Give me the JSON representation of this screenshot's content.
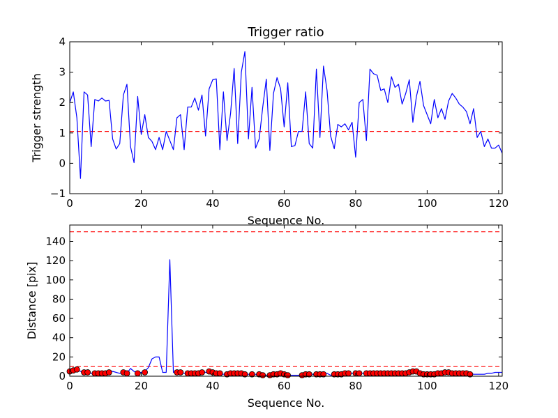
{
  "chart_data": [
    {
      "type": "line",
      "title": "Trigger ratio",
      "xlabel": "Sequence No.",
      "ylabel": "Trigger strength",
      "xlim": [
        0,
        121
      ],
      "ylim": [
        -1,
        4
      ],
      "xticks": [
        0,
        20,
        40,
        60,
        80,
        100,
        120
      ],
      "yticks": [
        -1,
        0,
        1,
        2,
        3,
        4
      ],
      "colors": {
        "line": "#0000ff",
        "threshold": "#ff0000"
      },
      "threshold_lines": [
        1.05
      ],
      "series": [
        {
          "x": [
            0,
            1,
            2,
            3,
            4,
            5,
            6,
            7,
            8,
            9,
            10,
            11,
            12,
            13,
            14,
            15,
            16,
            17,
            18,
            19,
            20,
            21,
            22,
            23,
            24,
            25,
            26,
            27,
            28,
            29,
            30,
            31,
            32,
            33,
            34,
            35,
            36,
            37,
            38,
            39,
            40,
            41,
            42,
            43,
            44,
            45,
            46,
            47,
            48,
            49,
            50,
            51,
            52,
            53,
            54,
            55,
            56,
            57,
            58,
            59,
            60,
            61,
            62,
            63,
            64,
            65,
            66,
            67,
            68,
            69,
            70,
            71,
            72,
            73,
            74,
            75,
            76,
            77,
            78,
            79,
            80,
            81,
            82,
            83,
            84,
            85,
            86,
            87,
            88,
            89,
            90,
            91,
            92,
            93,
            94,
            95,
            96,
            97,
            98,
            99,
            100,
            101,
            102,
            103,
            104,
            105,
            106,
            107,
            108,
            109,
            110,
            111,
            112,
            113,
            114,
            115,
            116,
            117,
            118,
            119,
            120,
            121
          ],
          "y": [
            2.0,
            2.35,
            1.5,
            -0.5,
            2.35,
            2.25,
            0.55,
            2.1,
            2.05,
            2.15,
            2.05,
            2.07,
            0.8,
            0.47,
            0.65,
            2.25,
            2.6,
            0.55,
            0.02,
            2.2,
            0.95,
            1.6,
            0.85,
            0.72,
            0.45,
            0.85,
            0.45,
            1.05,
            0.75,
            0.45,
            1.5,
            1.6,
            0.45,
            1.85,
            1.85,
            2.15,
            1.75,
            2.25,
            0.9,
            2.45,
            2.75,
            2.78,
            0.45,
            2.35,
            0.75,
            1.65,
            3.12,
            0.65,
            3.0,
            3.68,
            0.8,
            2.5,
            0.5,
            0.8,
            1.85,
            2.77,
            0.42,
            2.3,
            2.82,
            2.45,
            1.2,
            2.65,
            0.55,
            0.58,
            1.05,
            1.05,
            2.35,
            0.65,
            0.5,
            3.1,
            0.85,
            3.2,
            2.4,
            0.9,
            0.48,
            1.28,
            1.2,
            1.3,
            1.1,
            1.35,
            0.2,
            2.0,
            2.1,
            0.75,
            3.1,
            2.95,
            2.9,
            2.4,
            2.45,
            2.0,
            2.85,
            2.5,
            2.6,
            1.95,
            2.3,
            2.75,
            1.35,
            2.2,
            2.7,
            1.9,
            1.6,
            1.3,
            2.1,
            1.5,
            1.8,
            1.45,
            2.05,
            2.3,
            2.15,
            1.95,
            1.85,
            1.7,
            1.3,
            1.8,
            0.85,
            1.05,
            0.55,
            0.8,
            0.5,
            0.5,
            0.6,
            0.33
          ]
        }
      ]
    },
    {
      "type": "line",
      "title": "",
      "xlabel": "Sequence No.",
      "ylabel": "Distance [pix]",
      "xlim": [
        0,
        121
      ],
      "ylim": [
        0,
        157
      ],
      "xticks": [
        0,
        20,
        40,
        60,
        80,
        100,
        120
      ],
      "yticks": [
        0,
        20,
        40,
        60,
        80,
        100,
        120,
        140
      ],
      "colors": {
        "line": "#0000ff",
        "marker": "#ff0000",
        "threshold": "#ff0000"
      },
      "threshold_lines": [
        150,
        10
      ],
      "series": [
        {
          "x": [
            0,
            1,
            2,
            3,
            4,
            5,
            6,
            7,
            8,
            9,
            10,
            11,
            12,
            13,
            14,
            15,
            16,
            17,
            18,
            19,
            20,
            21,
            22,
            23,
            24,
            25,
            26,
            27,
            28,
            29,
            30,
            31,
            32,
            33,
            34,
            35,
            36,
            37,
            38,
            39,
            40,
            41,
            42,
            43,
            44,
            45,
            46,
            47,
            48,
            49,
            50,
            51,
            52,
            53,
            54,
            55,
            56,
            57,
            58,
            59,
            60,
            61,
            62,
            63,
            64,
            65,
            66,
            67,
            68,
            69,
            70,
            71,
            72,
            73,
            74,
            75,
            76,
            77,
            78,
            79,
            80,
            81,
            82,
            83,
            84,
            85,
            86,
            87,
            88,
            89,
            90,
            91,
            92,
            93,
            94,
            95,
            96,
            97,
            98,
            99,
            100,
            101,
            102,
            103,
            104,
            105,
            106,
            107,
            108,
            109,
            110,
            111,
            112,
            113,
            114,
            115,
            116,
            117,
            118,
            119,
            120,
            121
          ],
          "y": [
            5,
            6,
            7,
            5,
            4,
            4,
            3,
            3,
            3,
            3,
            4,
            4,
            5,
            4,
            3,
            3,
            3,
            8,
            5,
            3,
            4,
            5,
            9,
            18,
            20,
            20,
            4,
            4,
            121,
            4,
            4,
            4,
            3,
            3,
            3,
            4,
            5,
            5,
            4,
            4,
            3,
            3,
            2,
            2,
            3,
            3,
            3,
            3,
            2,
            2,
            2,
            2,
            2,
            1,
            1,
            1,
            2,
            2,
            3,
            2,
            1,
            1,
            1,
            1,
            1,
            1,
            2,
            2,
            2,
            2,
            2,
            2,
            3,
            1,
            2,
            2,
            2,
            2,
            3,
            3,
            3,
            3,
            3,
            3,
            3,
            3,
            3,
            3,
            3,
            3,
            3,
            3,
            3,
            3,
            3,
            4,
            5,
            5,
            3,
            2,
            2,
            2,
            2,
            2,
            3,
            3,
            4,
            4,
            3,
            3,
            3,
            3,
            3,
            2,
            2,
            2,
            2,
            3,
            3,
            4,
            4,
            4
          ],
          "markers_x": [
            0,
            1,
            2,
            4,
            5,
            7,
            8,
            9,
            10,
            11,
            15,
            16,
            19,
            21,
            30,
            31,
            33,
            34,
            35,
            36,
            37,
            39,
            40,
            41,
            42,
            44,
            45,
            46,
            47,
            48,
            49,
            51,
            53,
            54,
            56,
            57,
            58,
            59,
            60,
            61,
            65,
            66,
            67,
            69,
            70,
            71,
            74,
            75,
            76,
            77,
            78,
            80,
            81,
            83,
            84,
            85,
            86,
            87,
            88,
            89,
            90,
            91,
            92,
            93,
            94,
            95,
            96,
            97,
            98,
            99,
            100,
            101,
            102,
            103,
            104,
            105,
            106,
            107,
            108,
            109,
            110,
            111,
            112
          ],
          "markers_y": [
            5,
            6,
            7,
            4,
            4,
            3,
            3,
            3,
            3,
            4,
            4,
            3,
            3,
            4,
            4,
            4,
            3,
            3,
            3,
            3,
            4,
            5,
            4,
            3,
            3,
            2,
            3,
            3,
            3,
            3,
            2,
            2,
            2,
            1,
            1,
            2,
            2,
            3,
            2,
            1,
            1,
            2,
            2,
            2,
            2,
            2,
            2,
            2,
            2,
            3,
            3,
            3,
            3,
            3,
            3,
            3,
            3,
            3,
            3,
            3,
            3,
            3,
            3,
            3,
            3,
            4,
            5,
            5,
            3,
            2,
            2,
            2,
            2,
            3,
            3,
            4,
            4,
            3,
            3,
            3,
            3,
            3,
            2
          ]
        }
      ]
    }
  ]
}
